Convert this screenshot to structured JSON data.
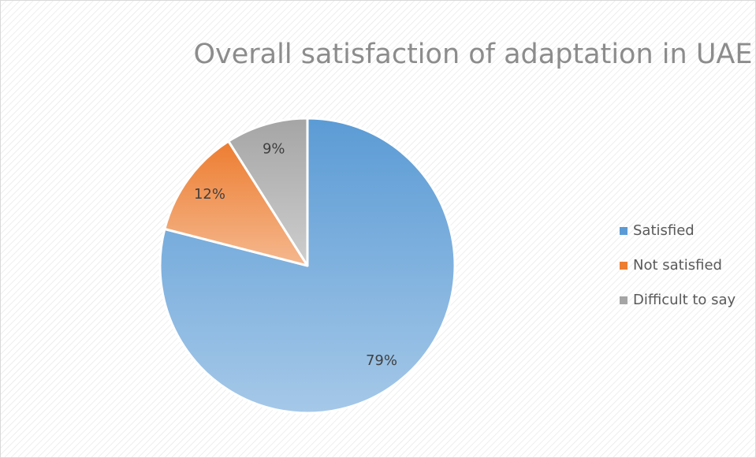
{
  "chart_data": {
    "type": "pie",
    "title": "Overall satisfaction of adaptation in UAE",
    "categories": [
      "Satisfied",
      "Not satisfied",
      "Difficult to say"
    ],
    "values": [
      79,
      12,
      9
    ],
    "value_labels": [
      "79%",
      "12%",
      "9%"
    ],
    "colors": [
      "#5b9bd5",
      "#ed7d31",
      "#a5a5a5"
    ],
    "legend": "right"
  }
}
